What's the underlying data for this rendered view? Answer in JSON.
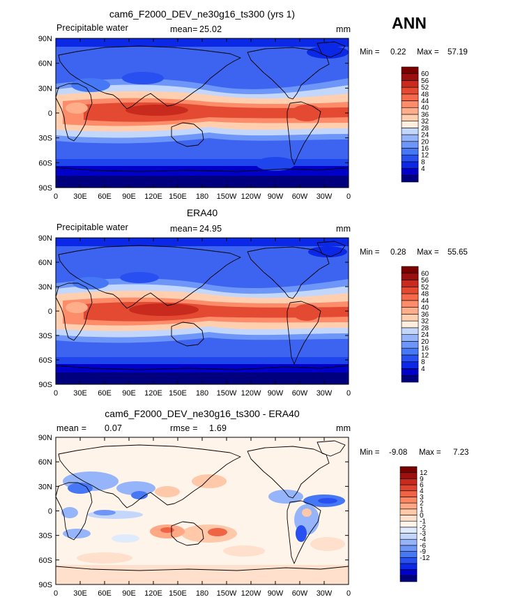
{
  "season": "ANN",
  "colors": {
    "abs_scale": [
      "#00007f",
      "#0000c8",
      "#0a28e6",
      "#2850f0",
      "#4678f5",
      "#6e96f8",
      "#96b4fa",
      "#c3d7fc",
      "#ffeedd",
      "#ffcfb0",
      "#ffae8c",
      "#fc8c6a",
      "#f56a4c",
      "#e44a32",
      "#c82a1e",
      "#9c0f0f",
      "#7a0000"
    ],
    "diff_scale": [
      "#00007f",
      "#0000c8",
      "#0a28e6",
      "#2850f0",
      "#4678f5",
      "#6e96f8",
      "#96b4fa",
      "#c3d7fc",
      "#dfeafd",
      "#fff4ea",
      "#ffe0cc",
      "#ffc8a8",
      "#ffa886",
      "#fa8664",
      "#f06446",
      "#dc4630",
      "#c82a1e",
      "#9c0f0f",
      "#7a0000"
    ],
    "coast": "#000000"
  },
  "panels": [
    {
      "id": "model",
      "title": "cam6_F2000_DEV_ne30g16_ts300 (yrs 1)",
      "variable": "Precipitable water",
      "stat1_label": "mean=",
      "stat1_value": "25.02",
      "stat2_label": "",
      "stat2_value": "",
      "units": "mm",
      "min_label": "Min =",
      "min_value": "0.22",
      "max_label": "Max =",
      "max_value": "57.19",
      "colorbar_labels": [
        "4",
        "8",
        "12",
        "16",
        "20",
        "24",
        "28",
        "32",
        "36",
        "40",
        "44",
        "48",
        "52",
        "56",
        "60"
      ]
    },
    {
      "id": "obs",
      "title": "ERA40",
      "variable": "Precipitable water",
      "stat1_label": "mean=",
      "stat1_value": "24.95",
      "stat2_label": "",
      "stat2_value": "",
      "units": "mm",
      "min_label": "Min =",
      "min_value": "0.28",
      "max_label": "Max =",
      "max_value": "55.65",
      "colorbar_labels": [
        "4",
        "8",
        "12",
        "16",
        "20",
        "24",
        "28",
        "32",
        "36",
        "40",
        "44",
        "48",
        "52",
        "56",
        "60"
      ]
    },
    {
      "id": "diff",
      "title": "cam6_F2000_DEV_ne30g16_ts300 - ERA40",
      "variable": "",
      "stat1_label": "mean =",
      "stat1_value": "0.07",
      "stat2_label": "rmse =",
      "stat2_value": "1.69",
      "units": "mm",
      "min_label": "Min =",
      "min_value": "-9.08",
      "max_label": "Max =",
      "max_value": "7.23",
      "colorbar_labels": [
        "-12",
        "-9",
        "-6",
        "-4",
        "-3",
        "-2",
        "-1",
        "0",
        "1",
        "2",
        "3",
        "4",
        "6",
        "9",
        "12"
      ]
    }
  ],
  "axes": {
    "lat_labels": [
      "90N",
      "60N",
      "30N",
      "0",
      "30S",
      "60S",
      "90S"
    ],
    "lon_labels": [
      "0",
      "30E",
      "60E",
      "90E",
      "120E",
      "150E",
      "180",
      "150W",
      "120W",
      "90W",
      "60W",
      "30W",
      "0"
    ]
  }
}
